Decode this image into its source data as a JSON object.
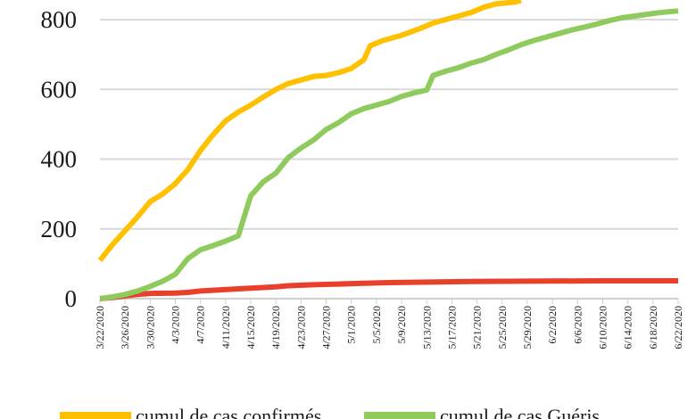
{
  "chart_data": {
    "type": "line",
    "title": "",
    "xlabel": "",
    "ylabel": "",
    "ylim": [
      0,
      800
    ],
    "y_ticks": [
      "0",
      "200",
      "400",
      "600",
      "800"
    ],
    "grid": true,
    "legend_position": "bottom",
    "x_labels": [
      "3/22/2020",
      "3/26/2020",
      "3/30/2020",
      "4/3/2020",
      "4/7/2020",
      "4/11/2020",
      "4/15/2020",
      "4/19/2020",
      "4/23/2020",
      "4/27/2020",
      "5/1/2020",
      "5/5/2020",
      "5/9/2020",
      "5/13/2020",
      "5/17/2020",
      "5/21/2020",
      "5/25/2020",
      "5/29/2020",
      "6/2/2020",
      "6/6/2020",
      "6/10/2020",
      "6/14/2020",
      "6/18/2020",
      "6/22/2020"
    ],
    "series": [
      {
        "name": "cumul de cas confirmés",
        "color": "#FFC000",
        "points": [
          [
            "3/22/2020",
            110
          ],
          [
            "3/24/2020",
            155
          ],
          [
            "3/26/2020",
            195
          ],
          [
            "3/28/2020",
            235
          ],
          [
            "3/30/2020",
            278
          ],
          [
            "4/1/2020",
            300
          ],
          [
            "4/3/2020",
            330
          ],
          [
            "4/5/2020",
            370
          ],
          [
            "4/7/2020",
            425
          ],
          [
            "4/9/2020",
            470
          ],
          [
            "4/11/2020",
            510
          ],
          [
            "4/13/2020",
            535
          ],
          [
            "4/15/2020",
            555
          ],
          [
            "4/17/2020",
            578
          ],
          [
            "4/19/2020",
            600
          ],
          [
            "4/21/2020",
            617
          ],
          [
            "4/23/2020",
            627
          ],
          [
            "4/25/2020",
            637
          ],
          [
            "4/27/2020",
            640
          ],
          [
            "4/29/2020",
            648
          ],
          [
            "5/1/2020",
            660
          ],
          [
            "5/3/2020",
            685
          ],
          [
            "5/4/2020",
            725
          ],
          [
            "5/6/2020",
            740
          ],
          [
            "5/9/2020",
            755
          ],
          [
            "5/12/2020",
            775
          ],
          [
            "5/14/2020",
            790
          ],
          [
            "5/17/2020",
            805
          ],
          [
            "5/20/2020",
            820
          ],
          [
            "5/22/2020",
            835
          ],
          [
            "5/24/2020",
            845
          ],
          [
            "5/27/2020",
            850
          ],
          [
            "5/28/2020",
            855
          ]
        ]
      },
      {
        "name": "cumul de cas Guéris",
        "color": "#8FCB5C",
        "points": [
          [
            "3/22/2020",
            0
          ],
          [
            "3/24/2020",
            5
          ],
          [
            "3/26/2020",
            12
          ],
          [
            "3/28/2020",
            22
          ],
          [
            "3/30/2020",
            35
          ],
          [
            "4/1/2020",
            50
          ],
          [
            "4/3/2020",
            70
          ],
          [
            "4/5/2020",
            115
          ],
          [
            "4/7/2020",
            140
          ],
          [
            "4/9/2020",
            152
          ],
          [
            "4/11/2020",
            165
          ],
          [
            "4/13/2020",
            180
          ],
          [
            "4/15/2020",
            295
          ],
          [
            "4/17/2020",
            335
          ],
          [
            "4/19/2020",
            360
          ],
          [
            "4/21/2020",
            405
          ],
          [
            "4/23/2020",
            432
          ],
          [
            "4/25/2020",
            455
          ],
          [
            "4/27/2020",
            485
          ],
          [
            "4/29/2020",
            505
          ],
          [
            "5/1/2020",
            530
          ],
          [
            "5/3/2020",
            545
          ],
          [
            "5/5/2020",
            555
          ],
          [
            "5/7/2020",
            565
          ],
          [
            "5/9/2020",
            580
          ],
          [
            "5/11/2020",
            590
          ],
          [
            "5/13/2020",
            598
          ],
          [
            "5/14/2020",
            640
          ],
          [
            "5/16/2020",
            652
          ],
          [
            "5/18/2020",
            662
          ],
          [
            "5/20/2020",
            675
          ],
          [
            "5/22/2020",
            685
          ],
          [
            "5/24/2020",
            700
          ],
          [
            "5/26/2020",
            713
          ],
          [
            "5/28/2020",
            728
          ],
          [
            "5/30/2020",
            740
          ],
          [
            "6/1/2020",
            750
          ],
          [
            "6/3/2020",
            760
          ],
          [
            "6/5/2020",
            770
          ],
          [
            "6/7/2020",
            778
          ],
          [
            "6/9/2020",
            787
          ],
          [
            "6/11/2020",
            797
          ],
          [
            "6/13/2020",
            805
          ],
          [
            "6/15/2020",
            810
          ],
          [
            "6/17/2020",
            815
          ],
          [
            "6/19/2020",
            820
          ],
          [
            "6/22/2020",
            825
          ]
        ]
      },
      {
        "name": "",
        "color": "#E8402A",
        "points": [
          [
            "3/22/2020",
            0
          ],
          [
            "3/24/2020",
            3
          ],
          [
            "3/26/2020",
            8
          ],
          [
            "3/28/2020",
            12
          ],
          [
            "3/30/2020",
            15
          ],
          [
            "4/3/2020",
            16
          ],
          [
            "4/5/2020",
            18
          ],
          [
            "4/7/2020",
            22
          ],
          [
            "4/9/2020",
            24
          ],
          [
            "4/11/2020",
            26
          ],
          [
            "4/13/2020",
            28
          ],
          [
            "4/15/2020",
            30
          ],
          [
            "4/17/2020",
            32
          ],
          [
            "4/19/2020",
            34
          ],
          [
            "4/21/2020",
            37
          ],
          [
            "4/25/2020",
            40
          ],
          [
            "4/29/2020",
            42
          ],
          [
            "5/3/2020",
            44
          ],
          [
            "5/7/2020",
            46
          ],
          [
            "5/11/2020",
            47
          ],
          [
            "5/15/2020",
            48
          ],
          [
            "5/20/2020",
            49
          ],
          [
            "5/29/2020",
            50
          ],
          [
            "6/10/2020",
            51
          ],
          [
            "6/22/2020",
            51
          ]
        ]
      }
    ],
    "legend": [
      {
        "label": "cumul de cas confirmés",
        "color": "#FFC000"
      },
      {
        "label": "cumul de cas Guéris",
        "color": "#8FCB5C"
      }
    ]
  }
}
